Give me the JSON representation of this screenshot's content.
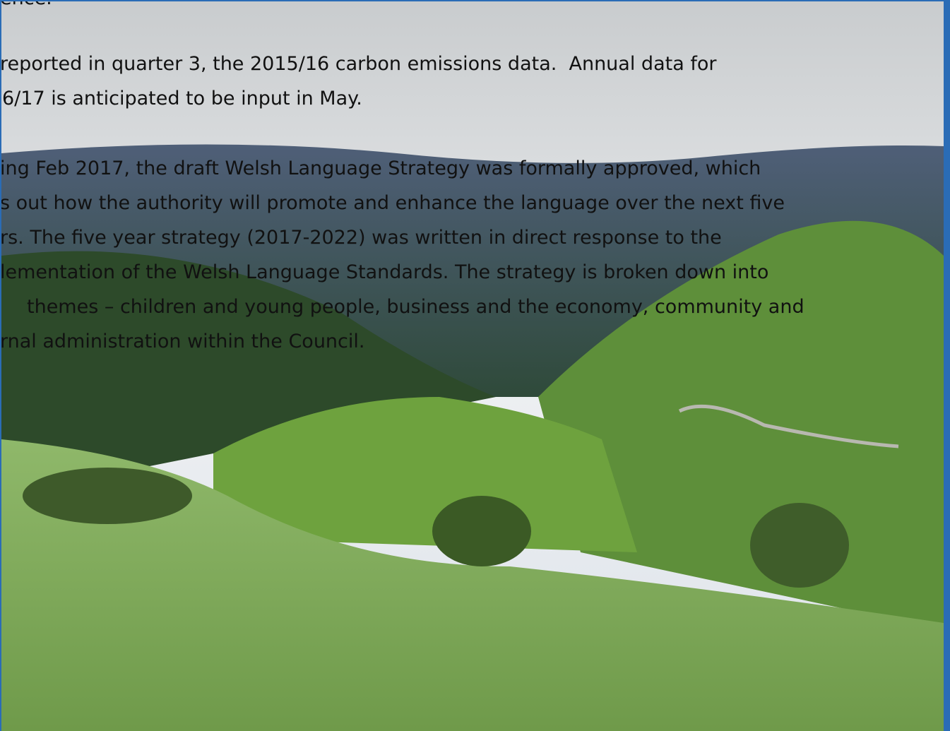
{
  "paragraphs": [
    {
      "lines": [
        "ence."
      ]
    },
    {
      "lines": [
        "reported in quarter 3, the 2015/16 carbon emissions data.  Annual data for",
        "6/17 is anticipated to be input in May."
      ]
    },
    {
      "lines": [
        "ing Feb 2017, the draft Welsh Language Strategy was formally approved, which",
        "s out how the authority will promote and enhance the language over the next five",
        "rs. The five year strategy (2017-2022) was written in direct response to the",
        "lementation of the Welsh Language Standards. The strategy is broken down into",
        "themes – children and young people, business and the economy, community and",
        "rnal administration within the Council."
      ]
    }
  ]
}
